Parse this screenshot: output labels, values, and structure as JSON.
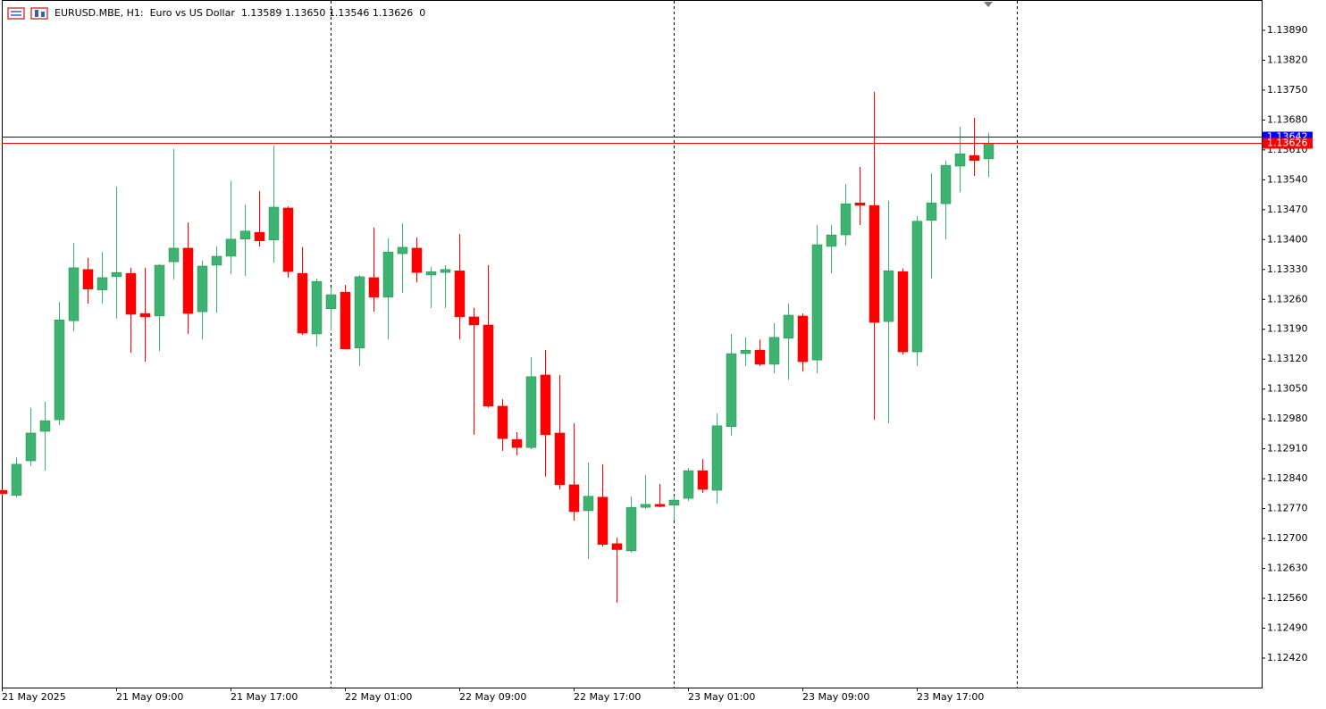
{
  "chart_data": {
    "type": "candlestick",
    "title": "EURUSD.MBE, H1:  Euro vs US Dollar  1.13589 1.13650 1.13546 1.13626  0",
    "categories": [
      "21 May 2025",
      null,
      null,
      null,
      null,
      null,
      null,
      null,
      "21 May 09:00",
      null,
      null,
      null,
      null,
      null,
      null,
      null,
      "21 May 17:00",
      null,
      null,
      null,
      null,
      null,
      null,
      null,
      "22 May 01:00",
      null,
      null,
      null,
      null,
      null,
      null,
      null,
      "22 May 09:00",
      null,
      null,
      null,
      null,
      null,
      null,
      null,
      "22 May 17:00",
      null,
      null,
      null,
      null,
      null,
      null,
      null,
      "23 May 01:00",
      null,
      null,
      null,
      null,
      null,
      null,
      null,
      "23 May 09:00",
      null,
      null,
      null,
      null,
      null,
      null,
      null,
      "23 May 17:00",
      null,
      null,
      null,
      null,
      null
    ],
    "open": [
      1.12813,
      1.12801,
      1.12882,
      1.12951,
      1.12978,
      1.1321,
      1.1333,
      1.13282,
      1.13313,
      1.13321,
      1.13227,
      1.13221,
      1.13348,
      1.1338,
      1.13231,
      1.1334,
      1.13361,
      1.13401,
      1.13417,
      1.13399,
      1.13474,
      1.13321,
      1.13179,
      1.13238,
      1.13277,
      1.13146,
      1.13311,
      1.13265,
      1.13367,
      1.1338,
      1.13317,
      1.13323,
      1.13327,
      1.13219,
      1.132,
      1.1301,
      1.12932,
      1.12913,
      1.13083,
      1.12947,
      1.12826,
      1.12765,
      1.12797,
      1.12688,
      1.12671,
      1.12773,
      1.1278,
      1.12778,
      1.12794,
      1.12859,
      1.12813,
      1.12962,
      1.13133,
      1.13141,
      1.13108,
      1.13169,
      1.13221,
      1.13118,
      1.13384,
      1.13411,
      1.13486,
      1.1348,
      1.13208,
      1.13325,
      1.13137,
      1.13445,
      1.13484,
      1.13572,
      1.13597,
      1.13589
    ],
    "high": [
      1.12815,
      1.1289,
      1.13006,
      1.1302,
      1.13254,
      1.13392,
      1.13357,
      1.13371,
      1.13524,
      1.13334,
      1.13334,
      1.13342,
      1.13612,
      1.1344,
      1.13351,
      1.13384,
      1.13537,
      1.13482,
      1.13514,
      1.1362,
      1.13478,
      1.13382,
      1.13309,
      1.13288,
      1.13294,
      1.13317,
      1.13428,
      1.13403,
      1.13438,
      1.13405,
      1.13336,
      1.1334,
      1.13413,
      1.1324,
      1.1334,
      1.13026,
      1.12949,
      1.13125,
      1.13141,
      1.13083,
      1.1297,
      1.12878,
      1.12874,
      1.12702,
      1.12798,
      1.12849,
      1.12828,
      1.12798,
      1.12865,
      1.12886,
      1.12993,
      1.13179,
      1.13171,
      1.13166,
      1.13204,
      1.1325,
      1.13227,
      1.13434,
      1.13434,
      1.1353,
      1.1357,
      1.13746,
      1.13491,
      1.13332,
      1.13455,
      1.13555,
      1.13585,
      1.13664,
      1.13685,
      1.1365
    ],
    "low": [
      1.128,
      1.12796,
      1.1287,
      1.12859,
      1.12966,
      1.13185,
      1.1325,
      1.1325,
      1.13215,
      1.13135,
      1.13114,
      1.13139,
      1.13307,
      1.13179,
      1.13166,
      1.13229,
      1.13319,
      1.13315,
      1.13384,
      1.13346,
      1.13311,
      1.13177,
      1.1315,
      1.13187,
      1.13144,
      1.13104,
      1.13231,
      1.13166,
      1.13275,
      1.133,
      1.1324,
      1.1324,
      1.13166,
      1.12943,
      1.13006,
      1.12905,
      1.12895,
      1.12909,
      1.12845,
      1.12815,
      1.12742,
      1.12652,
      1.12681,
      1.1255,
      1.12667,
      1.12769,
      1.12773,
      1.12742,
      1.12788,
      1.12807,
      1.12782,
      1.12941,
      1.13104,
      1.13104,
      1.13087,
      1.13072,
      1.13091,
      1.13087,
      1.13321,
      1.13386,
      1.13434,
      1.12978,
      1.1297,
      1.13131,
      1.13104,
      1.13309,
      1.13401,
      1.13511,
      1.13549,
      1.13546
    ],
    "close": [
      1.12805,
      1.12874,
      1.12947,
      1.12976,
      1.13212,
      1.13334,
      1.13284,
      1.13311,
      1.13323,
      1.13225,
      1.13219,
      1.1334,
      1.1338,
      1.13227,
      1.13338,
      1.13361,
      1.13401,
      1.1342,
      1.13397,
      1.13476,
      1.13325,
      1.13181,
      1.13302,
      1.13271,
      1.13144,
      1.13313,
      1.13265,
      1.13371,
      1.13382,
      1.13323,
      1.13325,
      1.1333,
      1.13219,
      1.132,
      1.1301,
      1.12934,
      1.12913,
      1.13079,
      1.12943,
      1.12826,
      1.12763,
      1.12799,
      1.12686,
      1.12674,
      1.12773,
      1.1278,
      1.12775,
      1.1279,
      1.12859,
      1.12815,
      1.12964,
      1.13133,
      1.13141,
      1.13108,
      1.13171,
      1.13223,
      1.13114,
      1.13388,
      1.13411,
      1.13484,
      1.1348,
      1.13206,
      1.13327,
      1.13137,
      1.13443,
      1.13486,
      1.13574,
      1.13601,
      1.13585,
      1.13626
    ],
    "up_color": "#3cb371",
    "down_color": "#ff0000",
    "ylim": [
      1.12351,
      1.13961
    ],
    "yticks": [
      {
        "value": 1.1389,
        "label": "1.13890"
      },
      {
        "value": 1.1382,
        "label": "1.13820"
      },
      {
        "value": 1.1375,
        "label": "1.13750"
      },
      {
        "value": 1.1368,
        "label": "1.13680"
      },
      {
        "value": 1.1361,
        "label": "1.13610"
      },
      {
        "value": 1.1354,
        "label": "1.13540"
      },
      {
        "value": 1.1347,
        "label": "1.13470"
      },
      {
        "value": 1.134,
        "label": "1.13400"
      },
      {
        "value": 1.1333,
        "label": "1.13330"
      },
      {
        "value": 1.1326,
        "label": "1.13260"
      },
      {
        "value": 1.1319,
        "label": "1.13190"
      },
      {
        "value": 1.1312,
        "label": "1.13120"
      },
      {
        "value": 1.1305,
        "label": "1.13050"
      },
      {
        "value": 1.1298,
        "label": "1.12980"
      },
      {
        "value": 1.1291,
        "label": "1.12910"
      },
      {
        "value": 1.1284,
        "label": "1.12840"
      },
      {
        "value": 1.1277,
        "label": "1.12770"
      },
      {
        "value": 1.127,
        "label": "1.12700"
      },
      {
        "value": 1.1263,
        "label": "1.12630"
      },
      {
        "value": 1.1256,
        "label": "1.12560"
      },
      {
        "value": 1.1249,
        "label": "1.12490"
      },
      {
        "value": 1.1242,
        "label": "1.12420"
      }
    ],
    "price_lines": [
      {
        "value": 1.13642,
        "color": "#0000ff"
      },
      {
        "value": 1.13626,
        "color": "#ff0000"
      }
    ]
  }
}
